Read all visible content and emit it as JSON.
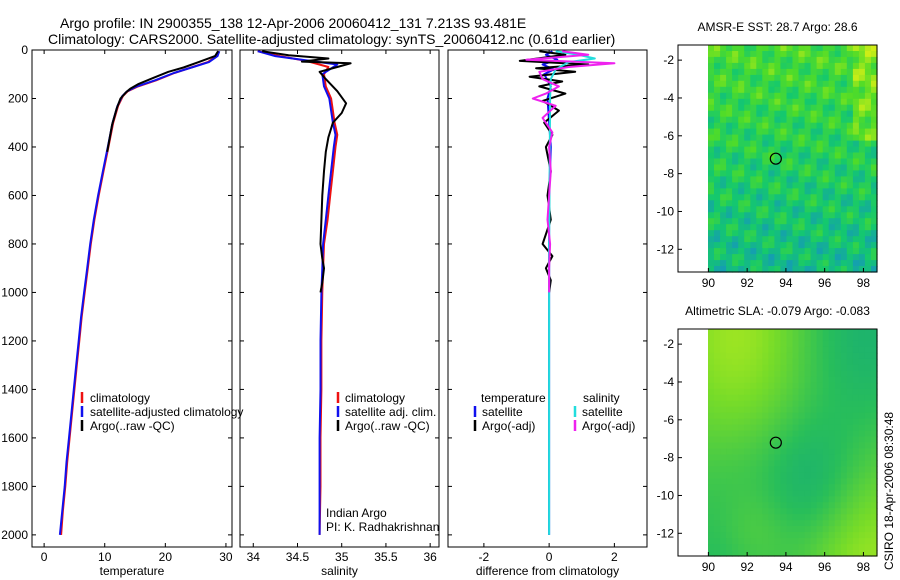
{
  "header": {
    "line1": "Argo profile: IN 2900355_138 12-Apr-2006 20060412_131 7.213S 93.481E",
    "line2": "Climatology: CARS2000. Satellite-adjusted climatology: synTS_20060412.nc (0.61d earlier)"
  },
  "colors": {
    "climatology": "#ee1111",
    "satellite": "#1010ee",
    "argo": "#000000",
    "salinity_satellite": "#22dddd",
    "salinity_argo": "#ee22ee",
    "map_ring": "#000000"
  },
  "credit": "CSIRO 18-Apr-2006 08:30:48",
  "chart_data": [
    {
      "id": "temperature",
      "type": "line",
      "xlabel": "temperature",
      "ylabel": "depth",
      "xlim": [
        -2,
        31
      ],
      "ylim": [
        2050,
        0
      ],
      "xticks": [
        0,
        10,
        20,
        30
      ],
      "yticks": [
        0,
        200,
        400,
        600,
        800,
        1000,
        1200,
        1400,
        1600,
        1800,
        2000
      ],
      "legend": {
        "position": "lower-right",
        "entries": [
          "climatology",
          "satellite-adjusted climatology",
          "Argo(..raw -QC)"
        ]
      },
      "series": [
        {
          "name": "climatology",
          "color_key": "climatology",
          "points": [
            [
              28.8,
              5
            ],
            [
              28.5,
              25
            ],
            [
              27.0,
              50
            ],
            [
              24.5,
              70
            ],
            [
              21.5,
              95
            ],
            [
              18.5,
              125
            ],
            [
              15.5,
              150
            ],
            [
              13.8,
              170
            ],
            [
              13.0,
              190
            ],
            [
              12.2,
              230
            ],
            [
              11.4,
              300
            ],
            [
              10.6,
              400
            ],
            [
              9.8,
              500
            ],
            [
              9.0,
              600
            ],
            [
              8.3,
              700
            ],
            [
              7.7,
              800
            ],
            [
              7.2,
              900
            ],
            [
              6.7,
              1000
            ],
            [
              6.2,
              1100
            ],
            [
              5.8,
              1200
            ],
            [
              5.4,
              1300
            ],
            [
              5.0,
              1400
            ],
            [
              4.6,
              1500
            ],
            [
              4.2,
              1600
            ],
            [
              3.8,
              1700
            ],
            [
              3.5,
              1800
            ],
            [
              3.1,
              1900
            ],
            [
              2.8,
              2000
            ]
          ]
        },
        {
          "name": "satellite-adjusted climatology",
          "color_key": "satellite",
          "points": [
            [
              28.9,
              5
            ],
            [
              28.6,
              25
            ],
            [
              27.2,
              50
            ],
            [
              24.6,
              70
            ],
            [
              21.4,
              95
            ],
            [
              18.3,
              125
            ],
            [
              15.3,
              150
            ],
            [
              13.7,
              170
            ],
            [
              12.9,
              190
            ],
            [
              12.1,
              230
            ],
            [
              11.3,
              300
            ],
            [
              10.5,
              400
            ],
            [
              9.7,
              500
            ],
            [
              8.9,
              600
            ],
            [
              8.2,
              700
            ],
            [
              7.6,
              800
            ],
            [
              7.1,
              900
            ],
            [
              6.6,
              1000
            ],
            [
              6.1,
              1100
            ],
            [
              5.7,
              1200
            ],
            [
              5.3,
              1300
            ],
            [
              4.9,
              1400
            ],
            [
              4.5,
              1500
            ],
            [
              4.1,
              1600
            ],
            [
              3.7,
              1700
            ],
            [
              3.4,
              1800
            ],
            [
              3.0,
              1900
            ],
            [
              2.6,
              2000
            ]
          ]
        },
        {
          "name": "Argo(..raw -QC)",
          "color_key": "argo",
          "points": [
            [
              28.7,
              5
            ],
            [
              28.2,
              25
            ],
            [
              25.5,
              50
            ],
            [
              23.0,
              72
            ],
            [
              20.5,
              90
            ],
            [
              18.0,
              115
            ],
            [
              15.6,
              140
            ],
            [
              14.2,
              160
            ],
            [
              13.5,
              175
            ],
            [
              12.6,
              200
            ],
            [
              12.0,
              240
            ],
            [
              11.2,
              310
            ],
            [
              10.4,
              420
            ]
          ]
        }
      ]
    },
    {
      "id": "salinity",
      "type": "line",
      "xlabel": "salinity",
      "ylabel": "",
      "xlim": [
        33.85,
        36.1
      ],
      "ylim": [
        2050,
        0
      ],
      "xticks": [
        34,
        34.5,
        35,
        35.5,
        36
      ],
      "yticks": [
        0,
        200,
        400,
        600,
        800,
        1000,
        1200,
        1400,
        1600,
        1800,
        2000
      ],
      "legend": {
        "position": "lower-right",
        "entries": [
          "climatology",
          "satellite adj. clim.",
          "Argo(..raw -QC)"
        ]
      },
      "annotation": [
        "Indian Argo",
        "PI: K. Radhakrishnan"
      ],
      "series": [
        {
          "name": "climatology",
          "color_key": "climatology",
          "points": [
            [
              34.05,
              5
            ],
            [
              34.3,
              25
            ],
            [
              34.6,
              45
            ],
            [
              34.85,
              70
            ],
            [
              34.8,
              100
            ],
            [
              34.82,
              150
            ],
            [
              34.88,
              200
            ],
            [
              34.92,
              300
            ],
            [
              34.95,
              350
            ],
            [
              34.93,
              400
            ],
            [
              34.9,
              500
            ],
            [
              34.87,
              600
            ],
            [
              34.84,
              700
            ],
            [
              34.8,
              800
            ],
            [
              34.79,
              900
            ],
            [
              34.78,
              1000
            ],
            [
              34.77,
              1200
            ],
            [
              34.77,
              1400
            ],
            [
              34.76,
              1600
            ],
            [
              34.76,
              1800
            ],
            [
              34.75,
              2000
            ]
          ]
        },
        {
          "name": "satellite adj. clim.",
          "color_key": "satellite",
          "points": [
            [
              34.05,
              5
            ],
            [
              34.25,
              25
            ],
            [
              34.55,
              40
            ],
            [
              34.95,
              60
            ],
            [
              34.78,
              100
            ],
            [
              34.8,
              150
            ],
            [
              34.86,
              200
            ],
            [
              34.9,
              300
            ],
            [
              34.93,
              350
            ],
            [
              34.91,
              400
            ],
            [
              34.88,
              500
            ],
            [
              34.85,
              600
            ],
            [
              34.82,
              700
            ],
            [
              34.79,
              800
            ],
            [
              34.78,
              900
            ],
            [
              34.77,
              1000
            ],
            [
              34.76,
              1200
            ],
            [
              34.76,
              1400
            ],
            [
              34.75,
              1600
            ],
            [
              34.75,
              1800
            ],
            [
              34.75,
              2000
            ]
          ]
        },
        {
          "name": "Argo(..raw -QC)",
          "color_key": "argo",
          "points": [
            [
              34.1,
              5
            ],
            [
              34.4,
              22
            ],
            [
              34.85,
              35
            ],
            [
              34.55,
              48
            ],
            [
              35.1,
              55
            ],
            [
              34.95,
              70
            ],
            [
              34.75,
              90
            ],
            [
              34.82,
              120
            ],
            [
              34.95,
              170
            ],
            [
              35.05,
              220
            ],
            [
              35.0,
              260
            ],
            [
              34.9,
              300
            ],
            [
              34.85,
              360
            ],
            [
              34.82,
              420
            ],
            [
              34.8,
              500
            ],
            [
              34.78,
              600
            ],
            [
              34.77,
              700
            ],
            [
              34.76,
              800
            ],
            [
              34.78,
              860
            ],
            [
              34.8,
              900
            ],
            [
              34.78,
              960
            ],
            [
              34.76,
              1000
            ]
          ]
        }
      ]
    },
    {
      "id": "difference",
      "type": "line",
      "xlabel": "difference from climatology",
      "ylabel": "",
      "xlim": [
        -3.1,
        3.0
      ],
      "ylim": [
        2050,
        0
      ],
      "xticks": [
        -2,
        0,
        2
      ],
      "yticks": [
        0,
        200,
        400,
        600,
        800,
        1000,
        1200,
        1400,
        1600,
        1800,
        2000
      ],
      "legend": {
        "position": "lower",
        "headers": [
          "temperature",
          "salinity"
        ],
        "entries": [
          "satellite",
          "Argo(-adj)",
          "satellite",
          "Argo(-adj)"
        ]
      },
      "series": [
        {
          "name": "temperature satellite",
          "color_key": "satellite",
          "points": [
            [
              0.1,
              5
            ],
            [
              -0.1,
              20
            ],
            [
              0.25,
              40
            ],
            [
              -0.2,
              60
            ],
            [
              0.15,
              80
            ],
            [
              -0.15,
              100
            ],
            [
              0.05,
              150
            ],
            [
              -0.05,
              200
            ],
            [
              0.05,
              400
            ],
            [
              0,
              600
            ],
            [
              0,
              800
            ],
            [
              0,
              1000
            ],
            [
              0,
              1200
            ],
            [
              0,
              1400
            ],
            [
              0,
              1600
            ],
            [
              0,
              1800
            ],
            [
              0,
              2000
            ]
          ]
        },
        {
          "name": "temperature Argo(-adj)",
          "color_key": "argo",
          "points": [
            [
              -0.3,
              5
            ],
            [
              0.5,
              20
            ],
            [
              -0.9,
              45
            ],
            [
              1.2,
              60
            ],
            [
              -0.4,
              75
            ],
            [
              0.8,
              90
            ],
            [
              -0.6,
              110
            ],
            [
              0.4,
              130
            ],
            [
              -0.3,
              150
            ],
            [
              0.5,
              180
            ],
            [
              -0.2,
              210
            ],
            [
              0.3,
              250
            ],
            [
              -0.15,
              300
            ],
            [
              0.1,
              350
            ],
            [
              -0.1,
              400
            ],
            [
              0.05,
              500
            ],
            [
              -0.05,
              600
            ],
            [
              0.05,
              700
            ],
            [
              -0.2,
              800
            ],
            [
              0.1,
              850
            ],
            [
              -0.1,
              900
            ],
            [
              0.05,
              950
            ],
            [
              0,
              1000
            ]
          ]
        },
        {
          "name": "salinity satellite",
          "color_key": "salinity_satellite",
          "points": [
            [
              0.2,
              5
            ],
            [
              0.9,
              20
            ],
            [
              1.4,
              35
            ],
            [
              0.6,
              50
            ],
            [
              0.2,
              80
            ],
            [
              0.05,
              120
            ],
            [
              0.03,
              200
            ],
            [
              0.02,
              400
            ],
            [
              0.01,
              600
            ],
            [
              0,
              800
            ],
            [
              0,
              1000
            ],
            [
              0,
              1200
            ],
            [
              0,
              1400
            ],
            [
              0,
              1600
            ],
            [
              0,
              1800
            ],
            [
              0,
              2000
            ]
          ]
        },
        {
          "name": "salinity Argo(-adj)",
          "color_key": "salinity_argo",
          "points": [
            [
              0.4,
              5
            ],
            [
              1.2,
              20
            ],
            [
              -0.7,
              40
            ],
            [
              2.0,
              55
            ],
            [
              0.6,
              70
            ],
            [
              -0.3,
              90
            ],
            [
              -0.2,
              120
            ],
            [
              0.3,
              150
            ],
            [
              -0.1,
              180
            ],
            [
              -0.5,
              200
            ],
            [
              0.2,
              230
            ],
            [
              -0.2,
              280
            ],
            [
              0.1,
              340
            ],
            [
              0,
              400
            ],
            [
              0.05,
              500
            ],
            [
              0,
              600
            ],
            [
              -0.05,
              700
            ],
            [
              0.03,
              800
            ],
            [
              0,
              900
            ],
            [
              0,
              1000
            ]
          ]
        }
      ]
    },
    {
      "id": "amsre-sst-map",
      "type": "heatmap",
      "title": "AMSR-E SST: 28.7 Argo: 28.6",
      "xlabel": "",
      "ylabel": "",
      "xlim": [
        89,
        98.7
      ],
      "ylim": [
        -13.2,
        -1.2
      ],
      "xticks": [
        90,
        92,
        94,
        96,
        98
      ],
      "yticks": [
        -2,
        -4,
        -6,
        -8,
        -10,
        -12
      ],
      "marker": {
        "lon": 93.48,
        "lat": -7.21
      }
    },
    {
      "id": "altimetric-sla-map",
      "type": "heatmap",
      "title": "Altimetric SLA: -0.079 Argo: -0.083",
      "xlabel": "",
      "ylabel": "",
      "xlim": [
        89,
        98.7
      ],
      "ylim": [
        -13.2,
        -1.2
      ],
      "xticks": [
        90,
        92,
        94,
        96,
        98
      ],
      "yticks": [
        -2,
        -4,
        -6,
        -8,
        -10,
        -12
      ],
      "marker": {
        "lon": 93.48,
        "lat": -7.21
      }
    }
  ]
}
